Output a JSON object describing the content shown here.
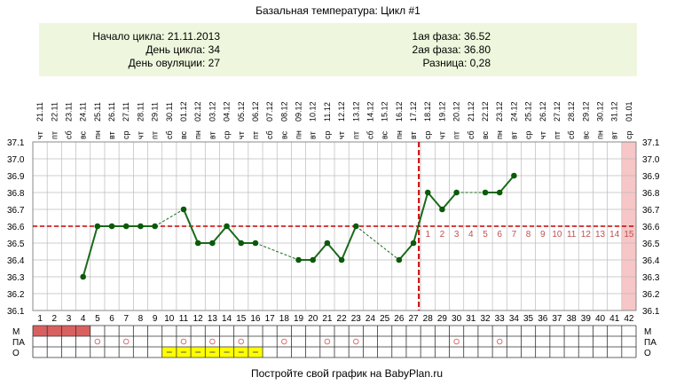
{
  "header": {
    "title": "Базальная температура: Цикл #1",
    "info_left": [
      "Начало цикла: 21.11.2013",
      "День цикла: 34",
      "День овуляции: 27"
    ],
    "info_right": [
      "1ая фаза: 36.52",
      "2ая фаза: 36.80",
      "Разница: 0,28"
    ]
  },
  "footer": "Постройте свой график на BabyPlan.ru",
  "legend_rows": [
    "М",
    "ПА",
    "О"
  ],
  "colors": {
    "line": "#1a6a1a",
    "point": "#0a5a0a",
    "coverline": "#cc0000",
    "info_bg": "#eef7dd",
    "menses": "#d96060",
    "fertile_bg": "#ffff00",
    "day15_band": "#f7c6c6",
    "grid": "#bbbbbb",
    "circle_mark": "#e07070"
  },
  "chart_data": {
    "type": "line",
    "title": "Базальная температура: Цикл #1",
    "xlabel": "",
    "ylabel": "",
    "ylim": [
      36.1,
      37.1
    ],
    "yticks": [
      "37.1",
      "37.0",
      "36.9",
      "36.8",
      "36.7",
      "36.6",
      "36.5",
      "36.4",
      "36.3",
      "36.2",
      "36.1"
    ],
    "days": [
      1,
      2,
      3,
      4,
      5,
      6,
      7,
      8,
      9,
      10,
      11,
      12,
      13,
      14,
      15,
      16,
      17,
      18,
      19,
      20,
      21,
      22,
      23,
      24,
      25,
      26,
      27,
      28,
      29,
      30,
      31,
      32,
      33,
      34,
      35,
      36,
      37,
      38,
      39,
      40,
      41,
      42
    ],
    "dates": [
      "21.11",
      "22.11",
      "23.11",
      "24.11",
      "25.11",
      "26.11",
      "27.11",
      "28.11",
      "29.11",
      "30.11",
      "01.12",
      "02.12",
      "03.12",
      "04.12",
      "05.12",
      "06.12",
      "07.12",
      "08.12",
      "09.12",
      "10.12",
      "11.12",
      "12.12",
      "13.12",
      "14.12",
      "15.12",
      "16.12",
      "17.12",
      "18.12",
      "19.12",
      "20.12",
      "21.12",
      "22.12",
      "23.12",
      "24.12",
      "25.12",
      "26.12",
      "27.12",
      "28.12",
      "29.12",
      "30.12",
      "31.12",
      "01.01"
    ],
    "weekdays": [
      "чт",
      "пт",
      "сб",
      "вс",
      "пн",
      "вт",
      "ср",
      "чт",
      "пт",
      "сб",
      "вс",
      "пн",
      "вт",
      "ср",
      "чт",
      "пт",
      "сб",
      "вс",
      "пн",
      "вт",
      "ср",
      "чт",
      "пт",
      "сб",
      "вс",
      "пн",
      "вт",
      "ср",
      "чт",
      "пт",
      "сб",
      "вс",
      "пн",
      "вт",
      "ср",
      "чт",
      "пт",
      "сб",
      "вс",
      "пн",
      "вт",
      "ср"
    ],
    "points": [
      {
        "day": 4,
        "temp": 36.3
      },
      {
        "day": 5,
        "temp": 36.6
      },
      {
        "day": 6,
        "temp": 36.6
      },
      {
        "day": 7,
        "temp": 36.6
      },
      {
        "day": 8,
        "temp": 36.6
      },
      {
        "day": 9,
        "temp": 36.6
      },
      {
        "day": 11,
        "temp": 36.7
      },
      {
        "day": 12,
        "temp": 36.5
      },
      {
        "day": 13,
        "temp": 36.5
      },
      {
        "day": 14,
        "temp": 36.6
      },
      {
        "day": 15,
        "temp": 36.5
      },
      {
        "day": 16,
        "temp": 36.5
      },
      {
        "day": 19,
        "temp": 36.4
      },
      {
        "day": 20,
        "temp": 36.4
      },
      {
        "day": 21,
        "temp": 36.5
      },
      {
        "day": 22,
        "temp": 36.4
      },
      {
        "day": 23,
        "temp": 36.6
      },
      {
        "day": 26,
        "temp": 36.4
      },
      {
        "day": 27,
        "temp": 36.5
      },
      {
        "day": 28,
        "temp": 36.8
      },
      {
        "day": 29,
        "temp": 36.7
      },
      {
        "day": 30,
        "temp": 36.8
      },
      {
        "day": 32,
        "temp": 36.8
      },
      {
        "day": 33,
        "temp": 36.8
      },
      {
        "day": 34,
        "temp": 36.9
      }
    ],
    "coverline": 36.6,
    "ovulation_day": 27,
    "phase2_labels": [
      "1",
      "2",
      "3",
      "4",
      "5",
      "6",
      "7",
      "8",
      "9",
      "10",
      "11",
      "12",
      "13",
      "14",
      "15"
    ],
    "highlight_day": 42,
    "menses_days": [
      1,
      2,
      3,
      4
    ],
    "pa_days": [
      5,
      7,
      11,
      13,
      15,
      18,
      21,
      23,
      30,
      33
    ],
    "fertile_days": [
      10,
      11,
      12,
      13,
      14,
      15,
      16
    ],
    "grid": true
  }
}
